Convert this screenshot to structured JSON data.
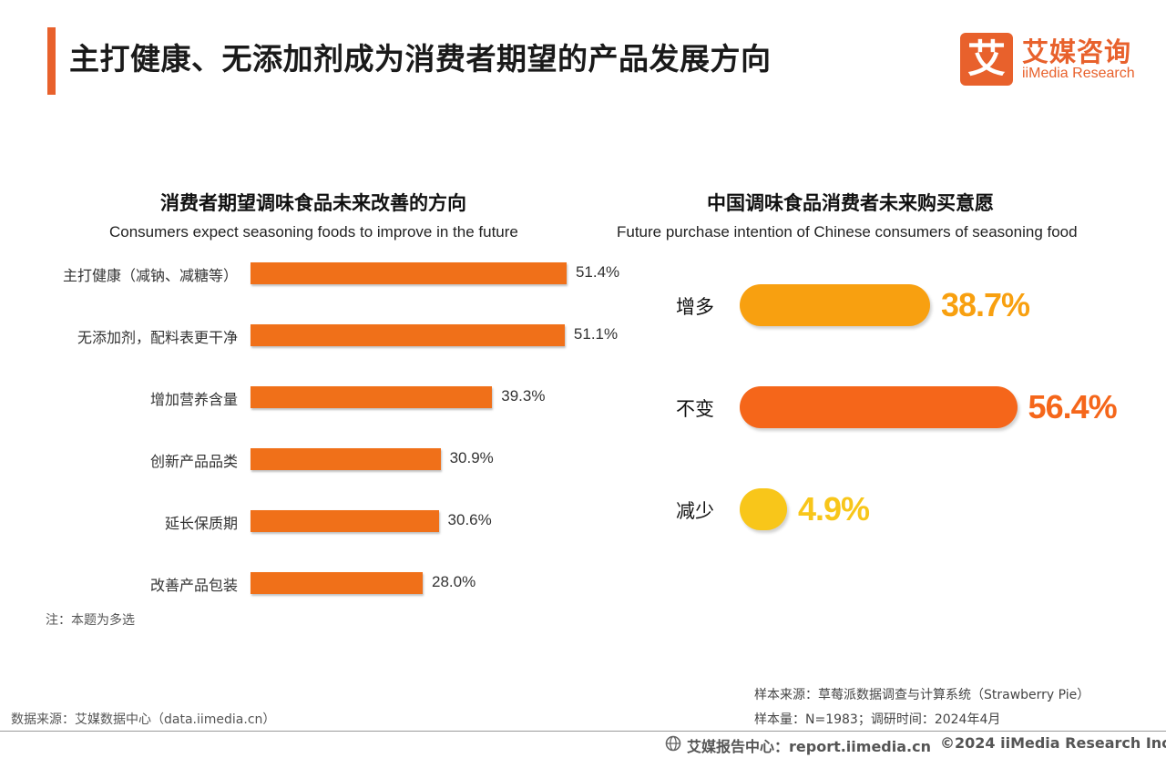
{
  "header": {
    "title": "主打健康、无添加剂成为消费者期望的产品发展方向",
    "logo_mark": "艾",
    "logo_cn": "艾媒咨询",
    "logo_en": "iiMedia Research",
    "accent_color": "#e8612c"
  },
  "chart_data": [
    {
      "type": "bar",
      "orientation": "horizontal",
      "title": "消费者期望调味食品未来改善的方向",
      "subtitle": "Consumers expect seasoning foods to improve in the future",
      "categories": [
        "主打健康（减钠、减糖等）",
        "无添加剂，配料表更干净",
        "增加营养含量",
        "创新产品品类",
        "延长保质期",
        "改善产品包装"
      ],
      "values": [
        51.4,
        51.1,
        39.3,
        30.9,
        30.6,
        28.0
      ],
      "value_labels": [
        "51.4%",
        "51.1%",
        "39.3%",
        "30.9%",
        "30.6%",
        "28.0%"
      ],
      "unit": "%",
      "bar_color": "#f07019",
      "note": "注：本题为多选"
    },
    {
      "type": "bar",
      "orientation": "horizontal",
      "style": "rounded-pill",
      "title": "中国调味食品消费者未来购买意愿",
      "subtitle": "Future purchase intention of Chinese consumers of seasoning food",
      "categories": [
        "增多",
        "不变",
        "减少"
      ],
      "values": [
        38.7,
        56.4,
        4.9
      ],
      "value_labels": [
        "38.7%",
        "56.4%",
        "4.9%"
      ],
      "unit": "%",
      "colors": [
        "#f8a010",
        "#f5661a",
        "#f8c61a"
      ]
    }
  ],
  "sources": {
    "sample_source": "样本来源：草莓派数据调查与计算系统（Strawberry Pie）",
    "sample_size": "样本量：N=1983；调研时间：2024年4月",
    "data_source": "数据来源：艾媒数据中心（data.iimedia.cn）"
  },
  "footer": {
    "report": "艾媒报告中心：report.iimedia.cn",
    "copyright": "©2024  iiMedia Research Inc"
  }
}
